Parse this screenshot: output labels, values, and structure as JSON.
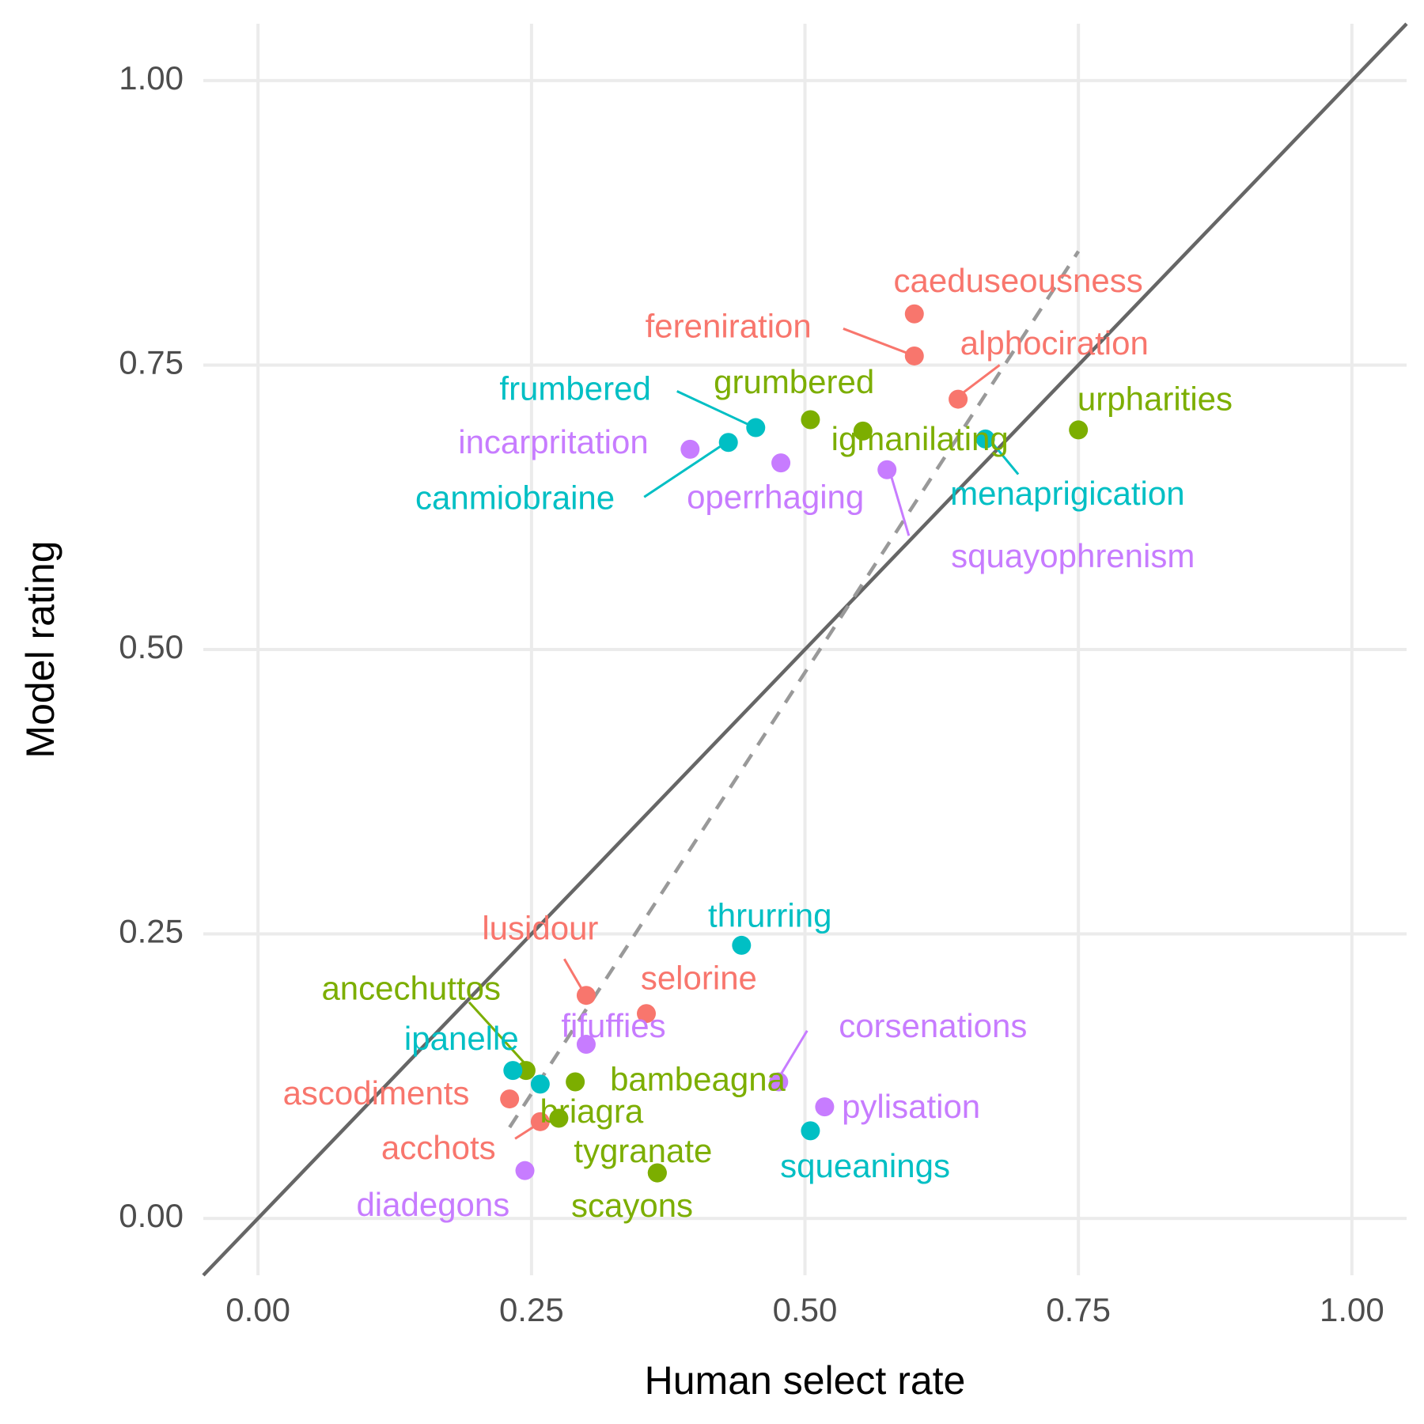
{
  "chart_data": {
    "type": "scatter",
    "title": "",
    "xlabel": "Human select rate",
    "ylabel": "Model rating",
    "xlim": [
      -0.05,
      1.05
    ],
    "ylim": [
      -0.05,
      1.05
    ],
    "x_ticks": [
      0,
      0.25,
      0.5,
      0.75,
      1
    ],
    "x_tick_labels": [
      "0.00",
      "0.25",
      "0.50",
      "0.75",
      "1.00"
    ],
    "y_ticks": [
      0,
      0.25,
      0.5,
      0.75,
      1
    ],
    "y_tick_labels": [
      "0.00",
      "0.25",
      "0.50",
      "0.75",
      "1.00"
    ],
    "grid": true,
    "legend": "none",
    "colors": {
      "red": "#f8766d",
      "green": "#7cae00",
      "cyan": "#00bfc4",
      "purple": "#c77cff",
      "grid": "#ebebeb",
      "identity_line": "#666666",
      "fit_line": "#999999"
    },
    "reference_lines": [
      {
        "name": "identity",
        "style": "solid",
        "slope": 1,
        "intercept": 0
      },
      {
        "name": "fit",
        "style": "dashed",
        "x": [
          0.23,
          0.75
        ],
        "y": [
          0.08,
          0.85
        ]
      }
    ],
    "points": [
      {
        "label": "caeduseousness",
        "group": "red",
        "x": 0.6,
        "y": 0.795,
        "label_x": 0.695,
        "label_y": 0.822
      },
      {
        "label": "fereniration",
        "group": "red",
        "x": 0.6,
        "y": 0.758,
        "label_x": 0.43,
        "label_y": 0.782
      },
      {
        "label": "alphociration",
        "group": "red",
        "x": 0.64,
        "y": 0.72,
        "label_x": 0.728,
        "label_y": 0.767
      },
      {
        "label": "lusidour",
        "group": "red",
        "x": 0.3,
        "y": 0.196,
        "label_x": 0.258,
        "label_y": 0.253
      },
      {
        "label": "selorine",
        "group": "red",
        "x": 0.355,
        "y": 0.18,
        "label_x": 0.403,
        "label_y": 0.209
      },
      {
        "label": "ascodiments",
        "group": "red",
        "x": 0.23,
        "y": 0.105,
        "label_x": 0.108,
        "label_y": 0.108
      },
      {
        "label": "acchots",
        "group": "red",
        "x": 0.258,
        "y": 0.085,
        "label_x": 0.165,
        "label_y": 0.06
      },
      {
        "label": "grumbered",
        "group": "green",
        "x": 0.505,
        "y": 0.702,
        "label_x": 0.49,
        "label_y": 0.733
      },
      {
        "label": "igmanilating",
        "group": "green",
        "x": 0.553,
        "y": 0.692,
        "label_x": 0.605,
        "label_y": 0.683
      },
      {
        "label": "urpharities",
        "group": "green",
        "x": 0.75,
        "y": 0.693,
        "label_x": 0.82,
        "label_y": 0.718
      },
      {
        "label": "ancechuttos",
        "group": "green",
        "x": 0.245,
        "y": 0.13,
        "label_x": 0.14,
        "label_y": 0.2
      },
      {
        "label": "bambeagna",
        "group": "green",
        "x": 0.29,
        "y": 0.12,
        "label_x": 0.402,
        "label_y": 0.12
      },
      {
        "label": "briagra",
        "group": "green",
        "x": 0.275,
        "y": 0.088,
        "label_x": 0.305,
        "label_y": 0.092
      },
      {
        "label": "tygranate",
        "group": "green",
        "x": 0.365,
        "y": 0.04,
        "label_x": 0.352,
        "label_y": 0.057
      },
      {
        "label": "scayons",
        "group": "green",
        "x": 0.365,
        "y": 0.04,
        "label_x": 0.342,
        "label_y": 0.009
      },
      {
        "label": "frumbered",
        "group": "cyan",
        "x": 0.455,
        "y": 0.695,
        "label_x": 0.29,
        "label_y": 0.727
      },
      {
        "label": "canmiobraine",
        "group": "cyan",
        "x": 0.43,
        "y": 0.682,
        "label_x": 0.235,
        "label_y": 0.631
      },
      {
        "label": "menaprigication",
        "group": "cyan",
        "x": 0.665,
        "y": 0.685,
        "label_x": 0.74,
        "label_y": 0.635
      },
      {
        "label": "thrurring",
        "group": "cyan",
        "x": 0.442,
        "y": 0.24,
        "label_x": 0.468,
        "label_y": 0.264
      },
      {
        "label": "ipanelle",
        "group": "cyan",
        "x": 0.233,
        "y": 0.13,
        "label_x": 0.186,
        "label_y": 0.156
      },
      {
        "label": "unnamed-point",
        "group": "cyan",
        "x": 0.258,
        "y": 0.118,
        "label_x": null,
        "label_y": null
      },
      {
        "label": "squeanings",
        "group": "cyan",
        "x": 0.505,
        "y": 0.077,
        "label_x": 0.555,
        "label_y": 0.044
      },
      {
        "label": "incarpritation",
        "group": "purple",
        "x": 0.395,
        "y": 0.676,
        "label_x": 0.27,
        "label_y": 0.68
      },
      {
        "label": "operrhaging",
        "group": "purple",
        "x": 0.478,
        "y": 0.664,
        "label_x": 0.473,
        "label_y": 0.632
      },
      {
        "label": "squayophrenism",
        "group": "purple",
        "x": 0.575,
        "y": 0.658,
        "label_x": 0.745,
        "label_y": 0.58
      },
      {
        "label": "fifuffies",
        "group": "purple",
        "x": 0.3,
        "y": 0.153,
        "label_x": 0.325,
        "label_y": 0.167
      },
      {
        "label": "corsenations",
        "group": "purple",
        "x": 0.476,
        "y": 0.12,
        "label_x": 0.617,
        "label_y": 0.167
      },
      {
        "label": "pylisation",
        "group": "purple",
        "x": 0.518,
        "y": 0.098,
        "label_x": 0.597,
        "label_y": 0.096
      },
      {
        "label": "diadegons",
        "group": "purple",
        "x": 0.244,
        "y": 0.042,
        "label_x": 0.16,
        "label_y": 0.01
      }
    ],
    "leaders": [
      {
        "label": "fereniration",
        "from": [
          0.535,
          0.782
        ],
        "to": [
          0.595,
          0.76
        ]
      },
      {
        "label": "alphociration",
        "from": [
          0.678,
          0.75
        ],
        "to": [
          0.645,
          0.726
        ]
      },
      {
        "label": "frumbered",
        "from": [
          0.383,
          0.727
        ],
        "to": [
          0.45,
          0.697
        ]
      },
      {
        "label": "canmiobraine",
        "from": [
          0.353,
          0.634
        ],
        "to": [
          0.425,
          0.68
        ]
      },
      {
        "label": "menaprigication",
        "from": [
          0.695,
          0.654
        ],
        "to": [
          0.67,
          0.683
        ]
      },
      {
        "label": "squayophrenism",
        "from": [
          0.595,
          0.6
        ],
        "to": [
          0.578,
          0.655
        ]
      },
      {
        "label": "lusidour",
        "from": [
          0.28,
          0.228
        ],
        "to": [
          0.297,
          0.2
        ]
      },
      {
        "label": "ancechuttos",
        "from": [
          0.193,
          0.19
        ],
        "to": [
          0.245,
          0.135
        ]
      },
      {
        "label": "acchots",
        "from": [
          0.235,
          0.07
        ],
        "to": [
          0.256,
          0.083
        ]
      },
      {
        "label": "corsenations",
        "from": [
          0.502,
          0.165
        ],
        "to": [
          0.477,
          0.125
        ]
      }
    ]
  }
}
